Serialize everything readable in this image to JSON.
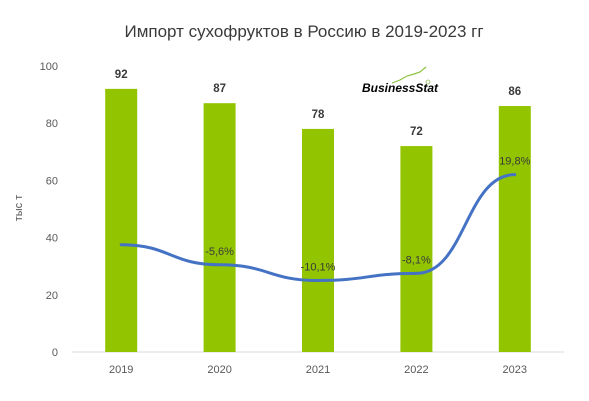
{
  "chart_data": {
    "type": "bar",
    "title": "Импорт сухофруктов в Россию в 2019-2023 гг",
    "ylabel": "тыс т",
    "xlabel": "",
    "ylim": [
      0,
      100
    ],
    "yticks": [
      0,
      20,
      40,
      60,
      80,
      100
    ],
    "categories": [
      "2019",
      "2020",
      "2021",
      "2022",
      "2023"
    ],
    "series": [
      {
        "type": "bar",
        "values": [
          92,
          87,
          78,
          72,
          86
        ],
        "labels": [
          "92",
          "87",
          "78",
          "72",
          "86"
        ],
        "color": "#92c400"
      },
      {
        "type": "line",
        "values": [
          null,
          -5.6,
          -10.1,
          -8.1,
          19.8
        ],
        "labels": [
          "",
          "-5,6%",
          "-10,1%",
          "-8,1%",
          "19,8%"
        ],
        "line_y_on_left_axis": [
          37.5,
          30.5,
          25,
          27.5,
          62
        ],
        "color": "#4472c4"
      }
    ],
    "grid": false,
    "legend": "none"
  },
  "logo": {
    "text": "BusinessStat",
    "color": "#6aa121"
  }
}
